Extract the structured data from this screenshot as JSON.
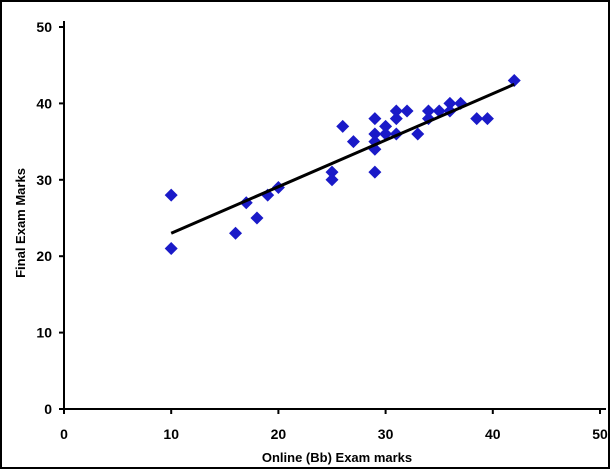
{
  "chart_data": {
    "type": "scatter",
    "title": "",
    "xlabel": "Online (Bb) Exam marks",
    "ylabel": "Final Exam Marks",
    "xlim": [
      0,
      50
    ],
    "ylim": [
      0,
      50
    ],
    "xticks": [
      0,
      10,
      20,
      30,
      40,
      50
    ],
    "yticks": [
      0,
      10,
      20,
      30,
      40,
      50
    ],
    "grid": false,
    "marker_color": "#1a1ac8",
    "trendline_color": "#000000",
    "series": [
      {
        "marker": "diamond",
        "points": [
          [
            10,
            28
          ],
          [
            10,
            21
          ],
          [
            16,
            23
          ],
          [
            17,
            27
          ],
          [
            18,
            25
          ],
          [
            19,
            28
          ],
          [
            20,
            29
          ],
          [
            25,
            31
          ],
          [
            25,
            30
          ],
          [
            26,
            37
          ],
          [
            27,
            35
          ],
          [
            29,
            38
          ],
          [
            29,
            36
          ],
          [
            29,
            35
          ],
          [
            29,
            34
          ],
          [
            29,
            31
          ],
          [
            30,
            37
          ],
          [
            30,
            36
          ],
          [
            31,
            39
          ],
          [
            31,
            38
          ],
          [
            31,
            36
          ],
          [
            32,
            39
          ],
          [
            33,
            36
          ],
          [
            34,
            39
          ],
          [
            34,
            38
          ],
          [
            35,
            39
          ],
          [
            36,
            40
          ],
          [
            36,
            39
          ],
          [
            37,
            40
          ],
          [
            38.5,
            38
          ],
          [
            39.5,
            38
          ],
          [
            42,
            43
          ]
        ]
      }
    ],
    "trendline": {
      "from": [
        10,
        23
      ],
      "to": [
        42,
        42.5
      ]
    }
  }
}
